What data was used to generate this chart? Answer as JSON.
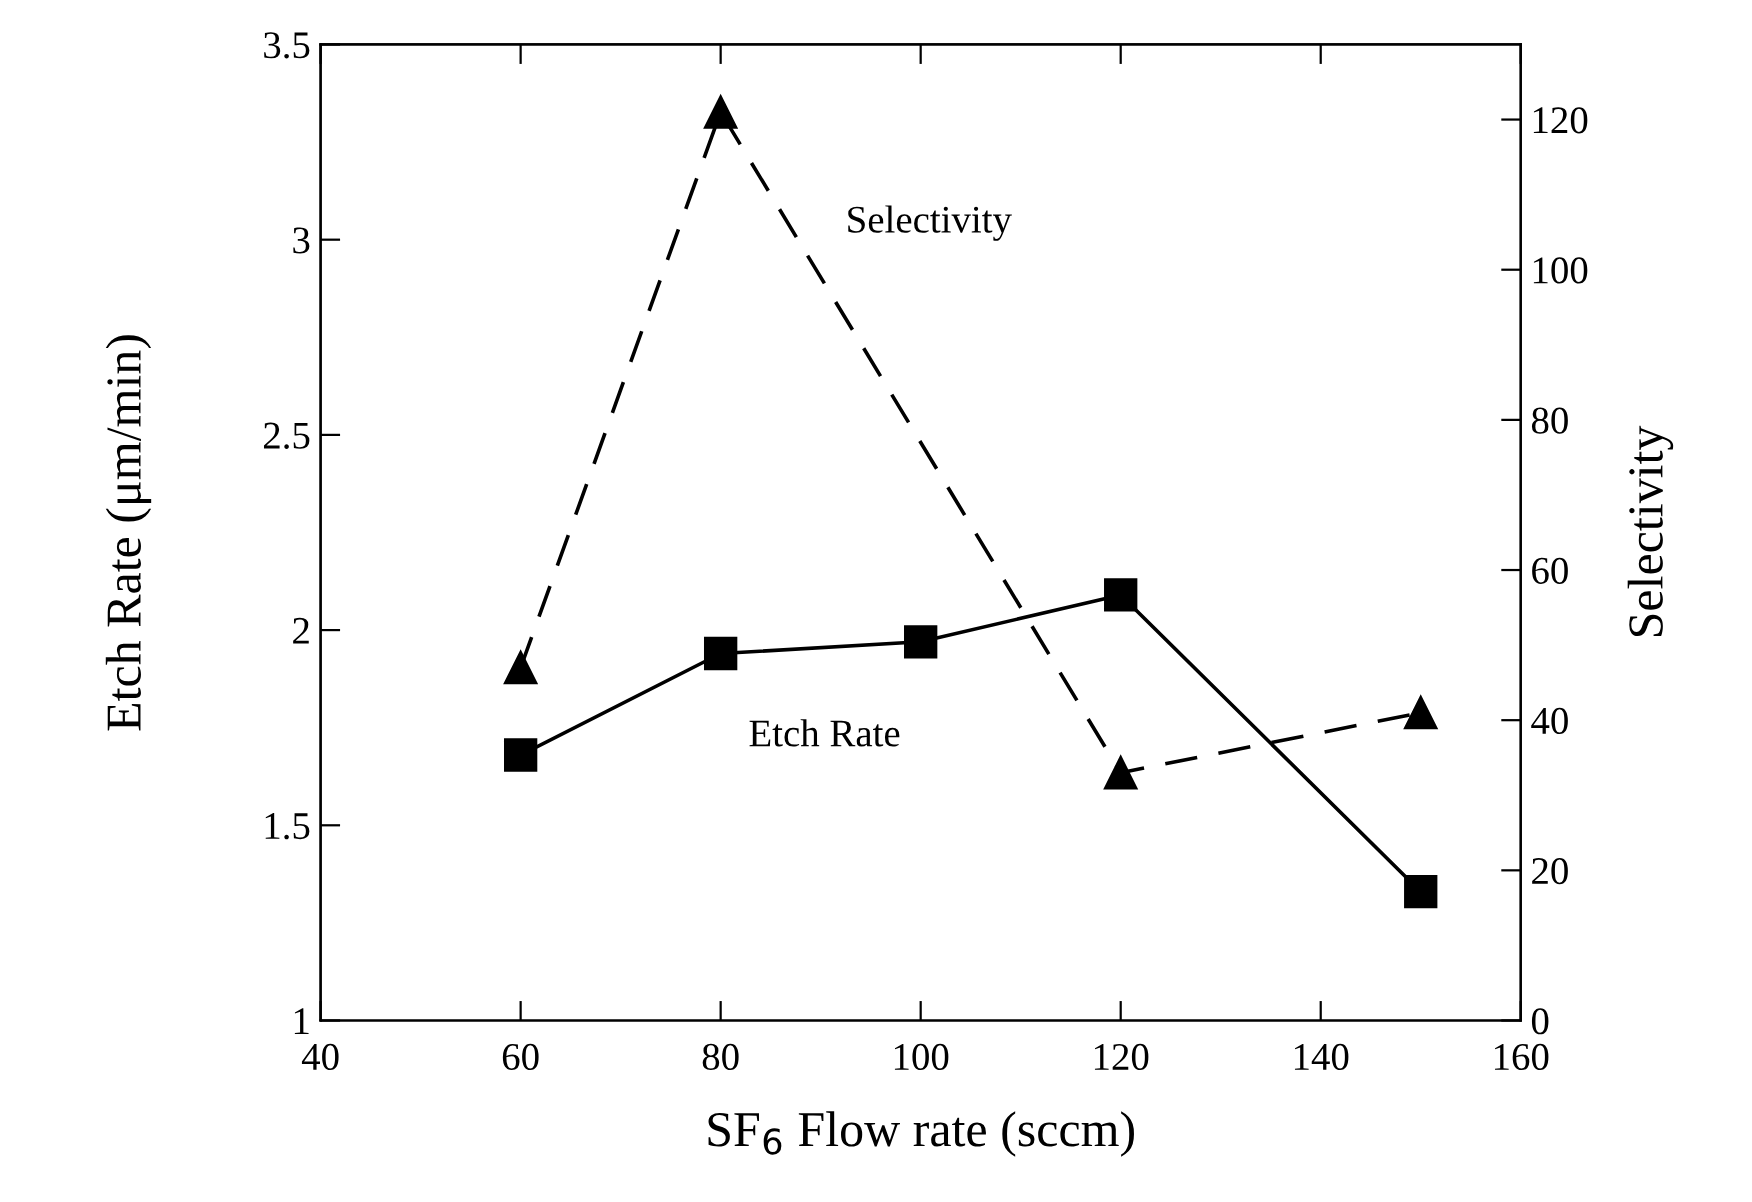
{
  "chart_data": {
    "type": "line",
    "xlabel": "SF$_{6}$ Flow rate (sccm)",
    "ylabel": "Etch Rate (μm/min)",
    "y2label": "Selectivity",
    "x": [
      60,
      80,
      100,
      120,
      150
    ],
    "series": [
      {
        "name": "Etch Rate",
        "color": "#000000",
        "values": [
          1.68,
          1.94,
          1.97,
          2.09,
          1.33
        ],
        "marker": "square",
        "line_style": "solid"
      },
      {
        "name": "Selectivity",
        "color": "#000000",
        "x": [
          60,
          80,
          120,
          150
        ],
        "values": [
          47,
          121,
          33,
          41
        ],
        "marker": "triangle",
        "line_style": "dashed",
        "axis": "y2"
      }
    ],
    "xlim": [
      40,
      160
    ],
    "xticks": [
      40,
      60,
      80,
      100,
      120,
      140,
      160
    ],
    "ylim": [
      1,
      3.5
    ],
    "yticks": [
      1,
      1.5,
      2,
      2.5,
      3,
      3.5
    ],
    "y2lim": [
      0,
      130
    ],
    "y2ticks": [
      0,
      20,
      40,
      60,
      80,
      100,
      120
    ],
    "grid": false,
    "legend": false
  }
}
